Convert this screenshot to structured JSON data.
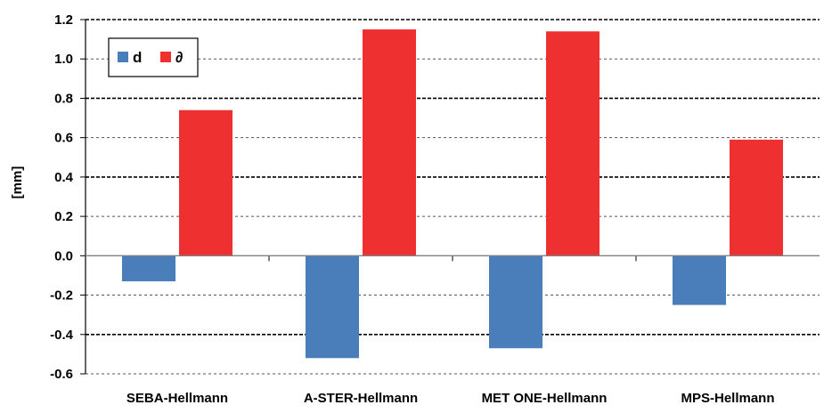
{
  "chart_data": {
    "type": "bar",
    "title": "",
    "xlabel": "",
    "ylabel": "[mm]",
    "ylim": [
      -0.6,
      1.2
    ],
    "yticks": [
      -0.6,
      -0.4,
      -0.2,
      0.0,
      0.2,
      0.4,
      0.6,
      0.8,
      1.0,
      1.2
    ],
    "ytick_labels": [
      "-0.6",
      "-0.4",
      "-0.2",
      "0.0",
      "0.2",
      "0.4",
      "0.6",
      "0.8",
      "1.0",
      "1.2"
    ],
    "categories": [
      "SEBA-Hellmann",
      "A-STER-Hellmann",
      "MET ONE-Hellmann",
      "MPS-Hellmann"
    ],
    "series": [
      {
        "name": "d",
        "color": "#4a7ebb",
        "values": [
          -0.13,
          -0.52,
          -0.47,
          -0.25
        ]
      },
      {
        "name": "∂",
        "color": "#ee3030",
        "values": [
          0.74,
          1.15,
          1.14,
          0.59
        ]
      }
    ],
    "grid": "horizontal dashed",
    "legend": "top-left"
  }
}
